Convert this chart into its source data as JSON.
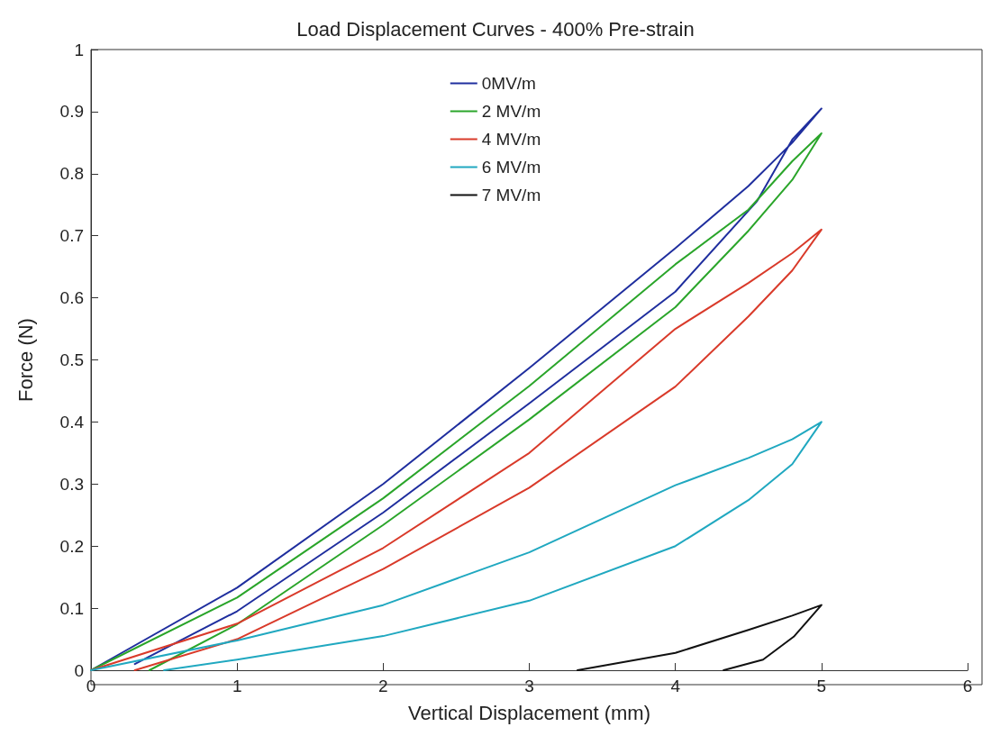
{
  "chart_data": {
    "type": "line",
    "title": "Load Displacement Curves - 400% Pre-strain",
    "xlabel": "Vertical Displacement (mm)",
    "ylabel": "Force (N)",
    "xlim": [
      0,
      6
    ],
    "xticks": [
      0,
      1,
      2,
      3,
      4,
      5,
      6
    ],
    "ylim": [
      0,
      1
    ],
    "yticks": [
      0,
      0.1,
      0.2,
      0.3,
      0.4,
      0.5,
      0.6,
      0.7,
      0.8,
      0.9,
      1
    ],
    "grid": false,
    "legend": "top",
    "marker": "none",
    "line_style": "solid",
    "series": [
      {
        "name": "0MV/m",
        "color": "#1f2e9e",
        "x": [
          0,
          1,
          2,
          3,
          4,
          4.5,
          4.8,
          5,
          4.8,
          4.56,
          4,
          3,
          2,
          1,
          0.3
        ],
        "values": [
          0,
          0.133,
          0.3,
          0.487,
          0.68,
          0.78,
          0.85,
          0.905,
          0.855,
          0.756,
          0.61,
          0.43,
          0.254,
          0.095,
          0.01
        ]
      },
      {
        "name": "2 MV/m",
        "color": "#2aa52a",
        "x": [
          0,
          1,
          2,
          3,
          4,
          4.5,
          4.8,
          5,
          4.8,
          4.5,
          4,
          3,
          2,
          1,
          0.4
        ],
        "values": [
          0,
          0.117,
          0.277,
          0.458,
          0.654,
          0.742,
          0.82,
          0.865,
          0.79,
          0.708,
          0.585,
          0.404,
          0.234,
          0.074,
          0
        ]
      },
      {
        "name": "4 MV/m",
        "color": "#d93a2a",
        "x": [
          0,
          1,
          2,
          3,
          4,
          4.5,
          4.8,
          5,
          4.8,
          4.5,
          4,
          3,
          2,
          1,
          0.3
        ],
        "values": [
          0,
          0.075,
          0.197,
          0.35,
          0.55,
          0.624,
          0.672,
          0.71,
          0.644,
          0.57,
          0.457,
          0.294,
          0.163,
          0.05,
          0
        ]
      },
      {
        "name": "6 MV/m",
        "color": "#20a8c0",
        "x": [
          0,
          1,
          2,
          3,
          4,
          4.5,
          4.8,
          5,
          4.8,
          4.5,
          4,
          3,
          2,
          1,
          0.5
        ],
        "values": [
          0,
          0.048,
          0.105,
          0.19,
          0.298,
          0.342,
          0.372,
          0.4,
          0.332,
          0.274,
          0.2,
          0.112,
          0.055,
          0.017,
          0
        ]
      },
      {
        "name": "7 MV/m",
        "color": "#111111",
        "x": [
          3.33,
          4,
          4.5,
          4.8,
          5,
          4.81,
          4.6,
          4.33
        ],
        "values": [
          0,
          0.028,
          0.065,
          0.088,
          0.105,
          0.054,
          0.017,
          0
        ]
      }
    ]
  }
}
